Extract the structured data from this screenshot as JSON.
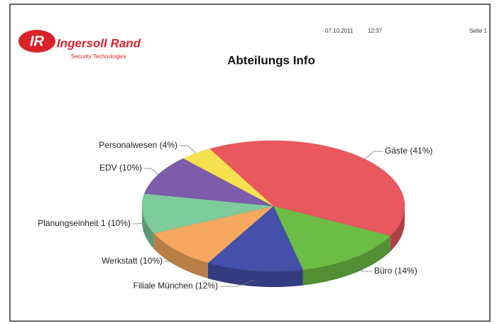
{
  "header": {
    "brand": "Ingersoll Rand",
    "tagline": "Security Technologies",
    "date": "07.10.2011",
    "time": "12:37",
    "page": "Seite 1"
  },
  "chart_data": {
    "type": "pie",
    "title": "Abteilungs Info",
    "categories": [
      "Gäste (41%)",
      "Büro (14%)",
      "Filiale München (12%)",
      "Werkstatt (10%)",
      "Planungseinheit 1 (10%)",
      "EDV (10%)",
      "Personalwesen (4%)"
    ],
    "values": [
      41,
      14,
      12,
      10,
      10,
      10,
      4
    ],
    "colors": [
      "#e9585c",
      "#6cbd45",
      "#4450aa",
      "#f5a85e",
      "#7ecb9c",
      "#7d5cab",
      "#f5e24e"
    ]
  }
}
